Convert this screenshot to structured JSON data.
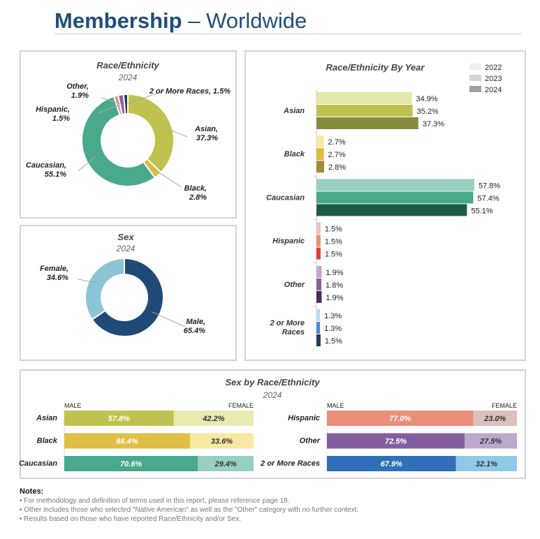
{
  "header": {
    "title_bold": "Membership",
    "title_rest": " – Worldwide"
  },
  "colors": {
    "navy": "#1f4e79"
  },
  "chart_data": [
    {
      "type": "pie",
      "title": "Race/Ethnicity",
      "subtitle": "2024",
      "donut": true,
      "slices": [
        {
          "label": "Asian",
          "value": 37.3,
          "color": "#bfc24e"
        },
        {
          "label": "Black",
          "value": 2.8,
          "color": "#e0b93e"
        },
        {
          "label": "Caucasian",
          "value": 55.1,
          "color": "#48a98d"
        },
        {
          "label": "Hispanic",
          "value": 1.5,
          "color": "#e8907a"
        },
        {
          "label": "Other",
          "value": 1.9,
          "color": "#8c5ea6"
        },
        {
          "label": "2 or More Races",
          "value": 1.5,
          "color": "#1e3a5f"
        }
      ],
      "labels": [
        "Asian,|37.3%",
        "Black,|2.8%",
        "Caucasian,|55.1%",
        "Hispanic,|1.5%",
        "Other,|1.9%",
        "2 or More Races, 1.5%"
      ]
    },
    {
      "type": "pie",
      "title": "Sex",
      "subtitle": "2024",
      "donut": true,
      "slices": [
        {
          "label": "Male",
          "value": 65.4,
          "color": "#1f4a78"
        },
        {
          "label": "Female",
          "value": 34.6,
          "color": "#8cc5d6"
        }
      ],
      "labels": [
        "Male,|65.4%",
        "Female,|34.6%"
      ]
    },
    {
      "type": "bar",
      "orientation": "horizontal",
      "title": "Race/Ethnicity By Year",
      "legend": {
        "placement": "top-right",
        "entries": [
          {
            "name": "2022",
            "color": "#f0f0f0"
          },
          {
            "name": "2023",
            "color": "#d4d4d4"
          },
          {
            "name": "2024",
            "color": "#a0a0a0"
          }
        ]
      },
      "categories": [
        "Asian",
        "Black",
        "Caucasian",
        "Hispanic",
        "Other",
        "2 or More|Races"
      ],
      "series": [
        {
          "name": "2022",
          "values": [
            34.9,
            2.7,
            57.8,
            1.5,
            1.9,
            1.3
          ]
        },
        {
          "name": "2023",
          "values": [
            35.2,
            2.7,
            57.4,
            1.5,
            1.8,
            1.3
          ]
        },
        {
          "name": "2024",
          "values": [
            37.3,
            2.8,
            55.1,
            1.5,
            1.9,
            1.5
          ]
        }
      ],
      "value_labels": [
        [
          "34.9%",
          "35.2%",
          "37.3%"
        ],
        [
          "2.7%",
          "2.7%",
          "2.8%"
        ],
        [
          "57.8%",
          "57.4%",
          "55.1%"
        ],
        [
          "1.5%",
          "1.5%",
          "1.5%"
        ],
        [
          "1.9%",
          "1.8%",
          "1.9%"
        ],
        [
          "1.3%",
          "1.3%",
          "1.5%"
        ]
      ],
      "colors": [
        [
          "#e5e8a8",
          "#bfc24e",
          "#878a3c"
        ],
        [
          "#f8e89a",
          "#e0b93e",
          "#a68a3a"
        ],
        [
          "#97cfc0",
          "#48a98d",
          "#1f5a47"
        ],
        [
          "#e8c3c2",
          "#e8907a",
          "#e0402e"
        ],
        [
          "#c0a8cc",
          "#8c5ea6",
          "#4a2c55"
        ],
        [
          "#b8dcf4",
          "#4a8ccc",
          "#1e3a5f"
        ]
      ]
    },
    {
      "type": "bar",
      "stacked": true,
      "orientation": "horizontal",
      "title": "Sex by Race/Ethnicity",
      "subtitle": "2024",
      "header_left": "MALE",
      "header_right": "FEMALE",
      "categories": [
        "Asian",
        "Black",
        "Caucasian",
        "Hispanic",
        "Other",
        "2 or More Races"
      ],
      "series": [
        {
          "name": "MALE",
          "values": [
            57.8,
            66.4,
            70.6,
            77.0,
            72.5,
            67.9
          ]
        },
        {
          "name": "FEMALE",
          "values": [
            42.2,
            33.6,
            29.4,
            23.0,
            27.5,
            32.1
          ]
        }
      ],
      "value_labels": [
        [
          "57.8%",
          "42.2%"
        ],
        [
          "66.4%",
          "33.6%"
        ],
        [
          "70.6%",
          "29.4%"
        ],
        [
          "77.0%",
          "23.0%"
        ],
        [
          "72.5%",
          "27.5%"
        ],
        [
          "67.9%",
          "32.1%"
        ]
      ],
      "colors": [
        [
          "#bfc24e",
          "#e8eab0"
        ],
        [
          "#e0be48",
          "#f8e8a0"
        ],
        [
          "#48a98d",
          "#97cfc0"
        ],
        [
          "#e8907a",
          "#dcc0bc"
        ],
        [
          "#845ea0",
          "#bca8cc"
        ],
        [
          "#3070b8",
          "#90c8e8"
        ]
      ]
    }
  ],
  "notes": {
    "heading": "Notes:",
    "items": [
      "For methodology and definition of terms used in this report, please reference page 18.",
      "Other includes those who selected \"Native American\" as well as the \"Other\" category with no further context.",
      "Results based on those who have reported Race/Ethnicity and/or Sex."
    ]
  }
}
